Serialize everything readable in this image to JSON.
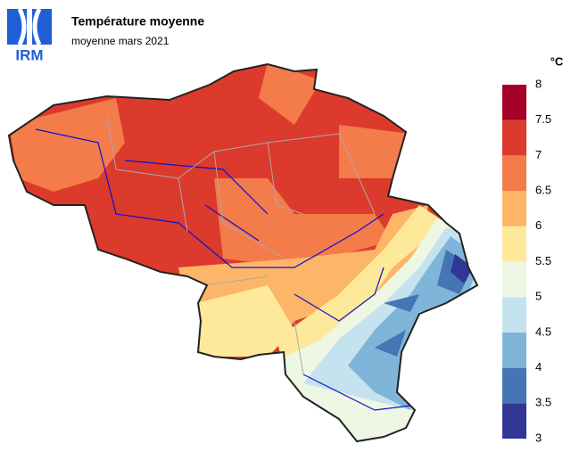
{
  "logo": "IRM",
  "header": {
    "title": "Température moyenne",
    "subtitle": "moyenne mars 2021"
  },
  "legend": {
    "unit": "°C",
    "ticks": [
      3,
      3.5,
      4,
      4.5,
      5,
      5.5,
      6,
      6.5,
      7,
      7.5,
      8
    ],
    "colors": [
      "#313695",
      "#4575b4",
      "#7fb5d8",
      "#c5e3ef",
      "#eef7e4",
      "#fee99a",
      "#fdb567",
      "#f47b4a",
      "#dc3a2c",
      "#a50026"
    ]
  }
}
